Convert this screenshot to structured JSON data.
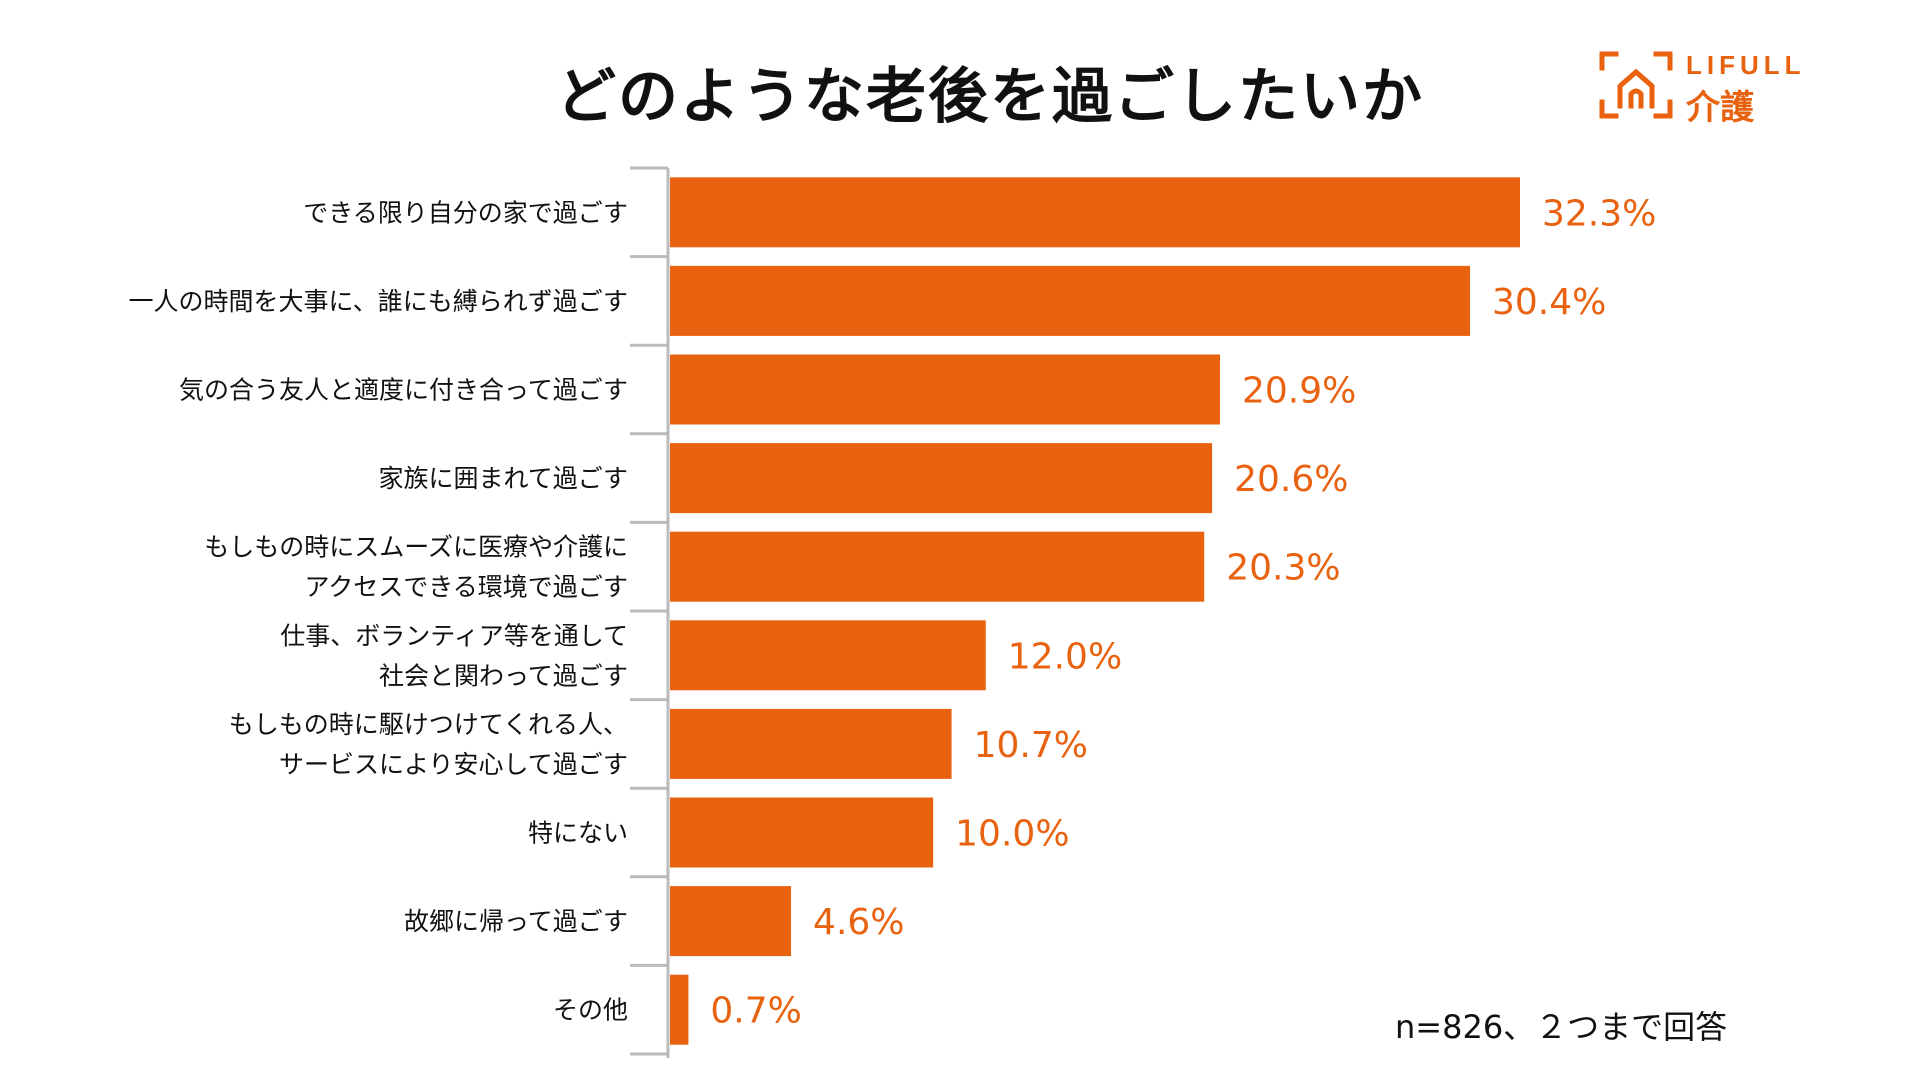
{
  "title": "どのような老後を過ごしたいか",
  "logo": {
    "word": "LIFULL",
    "sub": "介護"
  },
  "note": "n=826、２つまで回答",
  "colors": {
    "bar": "#e8620f",
    "label": "#e8620f",
    "axis": "#bbbbbb"
  },
  "chart_data": {
    "type": "bar",
    "orientation": "horizontal",
    "title": "どのような老後を過ごしたいか",
    "categories": [
      [
        "できる限り自分の家で過ごす"
      ],
      [
        "一人の時間を大事に、誰にも縛られず過ごす"
      ],
      [
        "気の合う友人と適度に付き合って過ごす"
      ],
      [
        "家族に囲まれて過ごす"
      ],
      [
        "もしもの時にスムーズに医療や介護に",
        "アクセスできる環境で過ごす"
      ],
      [
        "仕事、ボランティア等を通して",
        "社会と関わって過ごす"
      ],
      [
        "もしもの時に駆けつけてくれる人、",
        "サービスにより安心して過ごす"
      ],
      [
        "特にない"
      ],
      [
        "故郷に帰って過ごす"
      ],
      [
        "その他"
      ]
    ],
    "values": [
      32.3,
      30.4,
      20.9,
      20.6,
      20.3,
      12.0,
      10.7,
      10.0,
      4.6,
      0.7
    ],
    "value_labels": [
      "32.3%",
      "30.4%",
      "20.9%",
      "20.6%",
      "20.3%",
      "12.0%",
      "10.7%",
      "10.0%",
      "4.6%",
      "0.7%"
    ],
    "unit": "%",
    "xlim": [
      0,
      32.3
    ],
    "grid": false,
    "legend": "none"
  }
}
